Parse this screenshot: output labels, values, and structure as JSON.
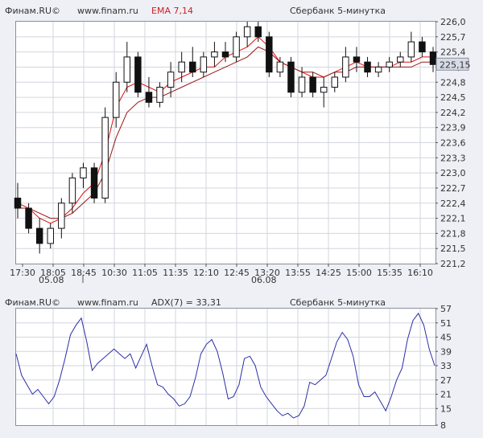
{
  "header_top": {
    "brand": "Финам.RU©",
    "site": "www.finam.ru",
    "indicator": "EMA 7,14",
    "title": "Сбербанк 5-минутка"
  },
  "header_bottom": {
    "brand": "Финам.RU©",
    "site": "www.finam.ru",
    "indicator": "ADX(7) = 33,31",
    "title": "Сбербанк 5-минутка"
  },
  "colors": {
    "up_candle": "#ffffff",
    "down_candle": "#111111",
    "ema_fast": "#e01010",
    "ema_slow": "#9a1414",
    "adx_line": "#2b2fa8",
    "indicator_text": "#d02020",
    "price_tag_bg": "#d7dbe6"
  },
  "chart_data": [
    {
      "type": "candlestick",
      "title": "Сбербанк 5-минутка",
      "x_tick_labels": [
        "17:30",
        "18:05",
        "18:45",
        "10:30",
        "11:05",
        "11:35",
        "12:10",
        "12:45",
        "13:20",
        "13:55",
        "14:25",
        "15:00",
        "15:35",
        "16:10"
      ],
      "date_labels": [
        "05.08",
        "06.08"
      ],
      "ylim": [
        221.2,
        226.0
      ],
      "y_ticks": [
        "226,0",
        "225,7",
        "225,4",
        "225,1",
        "224,8",
        "224,5",
        "224,2",
        "223,9",
        "223,6",
        "223,3",
        "223,0",
        "222,7",
        "222,4",
        "222,1",
        "221,8",
        "221,5",
        "221,2"
      ],
      "last_price": "225,15",
      "series": [
        {
          "name": "EMA 7",
          "values": [
            222.4,
            222.3,
            222.1,
            222.0,
            222.1,
            222.3,
            222.6,
            222.8,
            223.4,
            224.3,
            224.7,
            224.8,
            224.7,
            224.6,
            224.8,
            224.9,
            225.0,
            225.1,
            225.1,
            225.3,
            225.4,
            225.5,
            225.7,
            225.5,
            225.2,
            225.1,
            225.0,
            224.9,
            224.9,
            225.0,
            225.1,
            225.2,
            225.1,
            225.1,
            225.1,
            225.2,
            225.2,
            225.3,
            225.3
          ]
        },
        {
          "name": "EMA 14",
          "values": [
            222.3,
            222.3,
            222.2,
            222.1,
            222.1,
            222.2,
            222.4,
            222.6,
            223.0,
            223.7,
            224.2,
            224.4,
            224.5,
            224.5,
            224.6,
            224.7,
            224.8,
            224.9,
            225.0,
            225.1,
            225.2,
            225.3,
            225.5,
            225.4,
            225.2,
            225.1,
            225.0,
            225.0,
            224.9,
            225.0,
            225.0,
            225.1,
            225.1,
            225.1,
            225.1,
            225.1,
            225.1,
            225.2,
            225.2
          ]
        }
      ],
      "candles": [
        {
          "o": 222.5,
          "h": 222.8,
          "l": 222.1,
          "c": 222.3
        },
        {
          "o": 222.3,
          "h": 222.4,
          "l": 221.8,
          "c": 221.9
        },
        {
          "o": 221.9,
          "h": 222.1,
          "l": 221.4,
          "c": 221.6
        },
        {
          "o": 221.6,
          "h": 222.0,
          "l": 221.5,
          "c": 221.9
        },
        {
          "o": 221.9,
          "h": 222.5,
          "l": 221.7,
          "c": 222.4
        },
        {
          "o": 222.4,
          "h": 223.0,
          "l": 222.2,
          "c": 222.9
        },
        {
          "o": 222.9,
          "h": 223.2,
          "l": 222.7,
          "c": 223.1
        },
        {
          "o": 223.1,
          "h": 223.2,
          "l": 222.4,
          "c": 222.5
        },
        {
          "o": 222.5,
          "h": 224.3,
          "l": 222.4,
          "c": 224.1
        },
        {
          "o": 224.1,
          "h": 225.0,
          "l": 223.9,
          "c": 224.8
        },
        {
          "o": 224.8,
          "h": 225.6,
          "l": 224.6,
          "c": 225.3
        },
        {
          "o": 225.3,
          "h": 225.4,
          "l": 224.5,
          "c": 224.6
        },
        {
          "o": 224.6,
          "h": 224.9,
          "l": 224.3,
          "c": 224.4
        },
        {
          "o": 224.4,
          "h": 224.8,
          "l": 224.3,
          "c": 224.7
        },
        {
          "o": 224.7,
          "h": 225.2,
          "l": 224.5,
          "c": 225.0
        },
        {
          "o": 225.0,
          "h": 225.4,
          "l": 224.8,
          "c": 225.2
        },
        {
          "o": 225.2,
          "h": 225.5,
          "l": 224.9,
          "c": 225.0
        },
        {
          "o": 225.0,
          "h": 225.4,
          "l": 224.9,
          "c": 225.3
        },
        {
          "o": 225.3,
          "h": 225.6,
          "l": 225.1,
          "c": 225.4
        },
        {
          "o": 225.4,
          "h": 225.6,
          "l": 225.2,
          "c": 225.3
        },
        {
          "o": 225.3,
          "h": 225.8,
          "l": 225.2,
          "c": 225.7
        },
        {
          "o": 225.7,
          "h": 226.0,
          "l": 225.5,
          "c": 225.9
        },
        {
          "o": 225.9,
          "h": 226.0,
          "l": 225.6,
          "c": 225.7
        },
        {
          "o": 225.7,
          "h": 225.8,
          "l": 224.9,
          "c": 225.0
        },
        {
          "o": 225.0,
          "h": 225.3,
          "l": 224.9,
          "c": 225.2
        },
        {
          "o": 225.2,
          "h": 225.3,
          "l": 224.5,
          "c": 224.6
        },
        {
          "o": 224.6,
          "h": 225.1,
          "l": 224.5,
          "c": 224.9
        },
        {
          "o": 224.9,
          "h": 225.0,
          "l": 224.5,
          "c": 224.6
        },
        {
          "o": 224.6,
          "h": 224.9,
          "l": 224.3,
          "c": 224.7
        },
        {
          "o": 224.7,
          "h": 225.0,
          "l": 224.6,
          "c": 224.9
        },
        {
          "o": 224.9,
          "h": 225.5,
          "l": 224.8,
          "c": 225.3
        },
        {
          "o": 225.3,
          "h": 225.5,
          "l": 225.0,
          "c": 225.2
        },
        {
          "o": 225.2,
          "h": 225.3,
          "l": 224.9,
          "c": 225.0
        },
        {
          "o": 225.0,
          "h": 225.2,
          "l": 224.9,
          "c": 225.1
        },
        {
          "o": 225.1,
          "h": 225.3,
          "l": 225.0,
          "c": 225.2
        },
        {
          "o": 225.2,
          "h": 225.4,
          "l": 225.1,
          "c": 225.3
        },
        {
          "o": 225.3,
          "h": 225.8,
          "l": 225.2,
          "c": 225.6
        },
        {
          "o": 225.6,
          "h": 225.7,
          "l": 225.3,
          "c": 225.4
        },
        {
          "o": 225.4,
          "h": 225.5,
          "l": 225.0,
          "c": 225.15
        }
      ]
    },
    {
      "type": "line",
      "title": "ADX(7) = 33,31",
      "ylim": [
        8,
        57
      ],
      "y_ticks": [
        "57",
        "51",
        "45",
        "39",
        "33",
        "27",
        "21",
        "15",
        "8"
      ],
      "series": [
        {
          "name": "ADX(7)",
          "values": [
            38,
            29,
            25,
            21,
            23,
            20,
            17,
            20,
            27,
            36,
            46,
            50,
            53,
            43,
            31,
            34,
            36,
            38,
            40,
            38,
            36,
            38,
            32,
            37,
            42,
            33,
            25,
            24,
            21,
            19,
            16,
            17,
            20,
            28,
            38,
            42,
            44,
            39,
            30,
            19,
            20,
            25,
            36,
            37,
            33,
            24,
            20,
            17,
            14,
            12,
            13,
            11,
            12,
            16,
            26,
            25,
            27,
            29,
            36,
            43,
            47,
            44,
            37,
            25,
            20,
            20,
            22,
            18,
            14,
            20,
            27,
            32,
            44,
            52,
            55,
            50,
            40,
            33
          ]
        }
      ]
    }
  ]
}
